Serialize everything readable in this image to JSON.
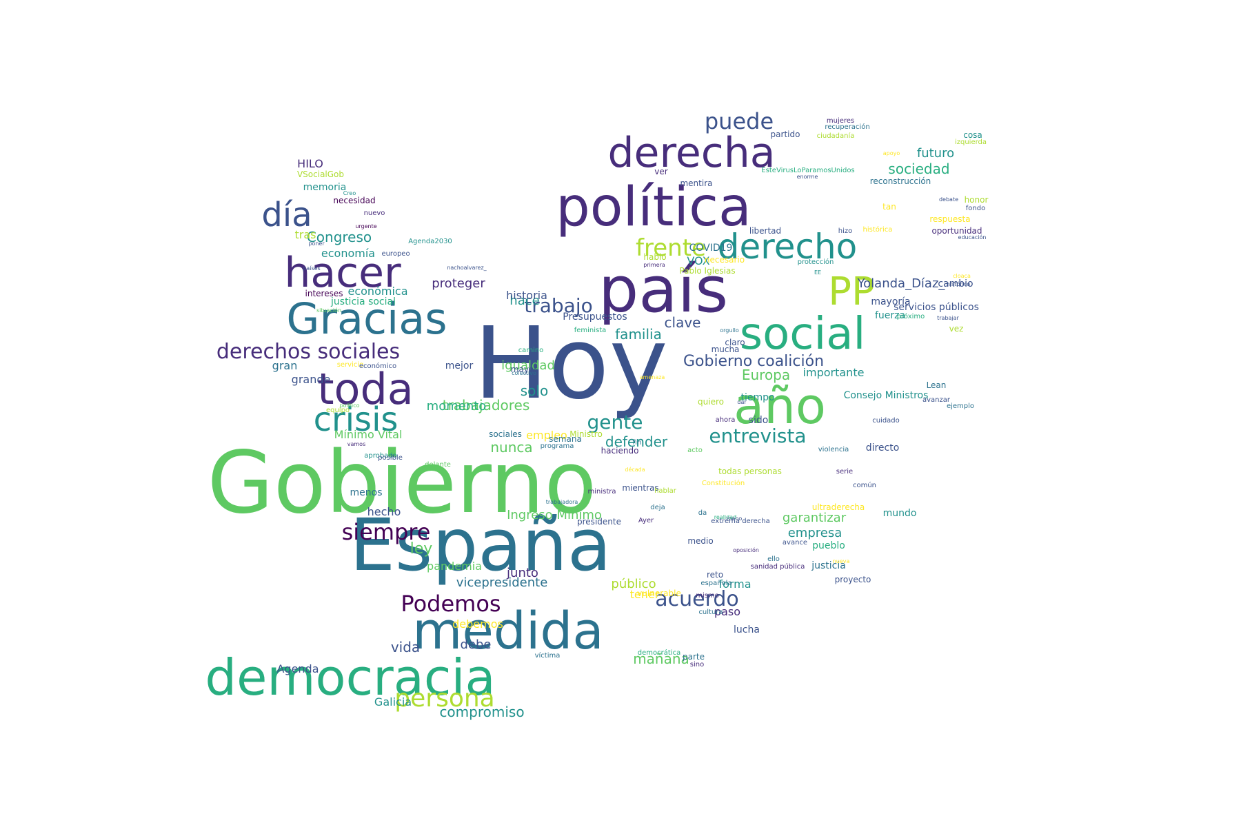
{
  "palette": {
    "deep_purple": "#440154",
    "purple": "#472d7b",
    "indigo": "#3b528b",
    "blue": "#2c728e",
    "teal": "#21918c",
    "green_teal": "#28ae80",
    "green": "#5ec962",
    "lime": "#addc30",
    "yellow": "#fde725"
  },
  "words": [
    {
      "text": "Hoy",
      "color": "#3b528b"
    },
    {
      "text": "Gobierno",
      "color": "#5ec962"
    },
    {
      "text": "España",
      "color": "#2c728e"
    },
    {
      "text": "país",
      "color": "#472d7b"
    },
    {
      "text": "política",
      "color": "#472d7b"
    },
    {
      "text": "medida",
      "color": "#2c728e"
    },
    {
      "text": "democracia",
      "color": "#28ae80"
    },
    {
      "text": "año",
      "color": "#5ec962"
    },
    {
      "text": "derecha",
      "color": "#472d7b"
    },
    {
      "text": "social",
      "color": "#28ae80"
    },
    {
      "text": "toda",
      "color": "#472d7b"
    },
    {
      "text": "Gracias",
      "color": "#2c728e"
    },
    {
      "text": "hacer",
      "color": "#472d7b"
    },
    {
      "text": "derecho",
      "color": "#21918c"
    },
    {
      "text": "PP",
      "color": "#addc30"
    },
    {
      "text": "día",
      "color": "#3b528b"
    },
    {
      "text": "crisis",
      "color": "#21918c"
    },
    {
      "text": "derechos sociales",
      "color": "#472d7b"
    },
    {
      "text": "persona",
      "color": "#addc30"
    },
    {
      "text": "Podemos",
      "color": "#440154"
    },
    {
      "text": "siempre",
      "color": "#440154"
    },
    {
      "text": "frente",
      "color": "#addc30"
    },
    {
      "text": "trabajo",
      "color": "#3b528b"
    },
    {
      "text": "acuerdo",
      "color": "#3b528b"
    },
    {
      "text": "entrevista",
      "color": "#21918c"
    },
    {
      "text": "puede",
      "color": "#3b528b"
    },
    {
      "text": "gente",
      "color": "#21918c"
    },
    {
      "text": "Gobierno coalición",
      "color": "#3b528b"
    },
    {
      "text": "trabajadores",
      "color": "#5ec962"
    },
    {
      "text": "Ingreso Mínimo",
      "color": "#5ec962"
    },
    {
      "text": "Congreso",
      "color": "#21918c"
    },
    {
      "text": "proteger",
      "color": "#472d7b"
    },
    {
      "text": "vicepresidente",
      "color": "#2c728e"
    },
    {
      "text": "público",
      "color": "#addc30"
    },
    {
      "text": "momento",
      "color": "#28ae80"
    },
    {
      "text": "defender",
      "color": "#21918c"
    },
    {
      "text": "familia",
      "color": "#21918c"
    },
    {
      "text": "clave",
      "color": "#3b528b"
    },
    {
      "text": "compromiso",
      "color": "#21918c"
    },
    {
      "text": "mañana",
      "color": "#5ec962"
    },
    {
      "text": "vida",
      "color": "#3b528b"
    },
    {
      "text": "debe",
      "color": "#3b528b"
    },
    {
      "text": "igualdad",
      "color": "#5ec962"
    },
    {
      "text": "Europa",
      "color": "#5ec962"
    },
    {
      "text": "sociedad",
      "color": "#28ae80"
    },
    {
      "text": "futuro",
      "color": "#21918c"
    },
    {
      "text": "Yolanda_Díaz_",
      "color": "#3b528b"
    },
    {
      "text": "garantizar",
      "color": "#5ec962"
    },
    {
      "text": "empresa",
      "color": "#21918c"
    },
    {
      "text": "importante",
      "color": "#21918c"
    },
    {
      "text": "ley",
      "color": "#5ec962"
    },
    {
      "text": "solo",
      "color": "#21918c"
    },
    {
      "text": "hace",
      "color": "#21918c"
    },
    {
      "text": "historia",
      "color": "#3b528b"
    },
    {
      "text": "economía",
      "color": "#21918c"
    },
    {
      "text": "económica",
      "color": "#21918c"
    },
    {
      "text": "nunca",
      "color": "#5ec962"
    },
    {
      "text": "Galicia",
      "color": "#21918c"
    },
    {
      "text": "Agenda",
      "color": "#3b528b"
    },
    {
      "text": "debemos",
      "color": "#fde725"
    },
    {
      "text": "pandemia",
      "color": "#5ec962"
    },
    {
      "text": "junto",
      "color": "#472d7b"
    },
    {
      "text": "hecho",
      "color": "#3b528b"
    },
    {
      "text": "gran",
      "color": "#2c728e"
    },
    {
      "text": "grande",
      "color": "#3b528b"
    },
    {
      "text": "mejor",
      "color": "#3b528b"
    },
    {
      "text": "empleo",
      "color": "#fde725"
    },
    {
      "text": "tener",
      "color": "#fde725"
    },
    {
      "text": "forma",
      "color": "#21918c"
    },
    {
      "text": "paso",
      "color": "#472d7b"
    },
    {
      "text": "lucha",
      "color": "#3b528b"
    },
    {
      "text": "HILO",
      "color": "#472d7b"
    },
    {
      "text": "tras",
      "color": "#addc30"
    },
    {
      "text": "memoria",
      "color": "#21918c"
    },
    {
      "text": "VSocialGob",
      "color": "#addc30"
    },
    {
      "text": "VOX",
      "color": "#21918c"
    },
    {
      "text": "COVID19",
      "color": "#2c728e"
    },
    {
      "text": "Presupuestos",
      "color": "#3b528b"
    },
    {
      "text": "justicia social",
      "color": "#28ae80"
    },
    {
      "text": "Mínimo Vital",
      "color": "#5ec962"
    },
    {
      "text": "menos",
      "color": "#2c728e"
    },
    {
      "text": "mundo",
      "color": "#21918c"
    },
    {
      "text": "directo",
      "color": "#3b528b"
    },
    {
      "text": "sido",
      "color": "#3b528b"
    },
    {
      "text": "tiempo",
      "color": "#21918c"
    },
    {
      "text": "fuerza",
      "color": "#21918c"
    },
    {
      "text": "mayoría",
      "color": "#3b528b"
    },
    {
      "text": "cambio",
      "color": "#3b528b"
    },
    {
      "text": "servicios públicos",
      "color": "#3b528b"
    },
    {
      "text": "pueblo",
      "color": "#28ae80"
    },
    {
      "text": "justicia",
      "color": "#2c728e"
    },
    {
      "text": "proyecto",
      "color": "#3b528b"
    },
    {
      "text": "mujeres",
      "color": "#472d7b"
    },
    {
      "text": "recuperación",
      "color": "#2c728e"
    },
    {
      "text": "partido",
      "color": "#3b528b"
    },
    {
      "text": "ciudadanía",
      "color": "#addc30"
    },
    {
      "text": "cosa",
      "color": "#21918c"
    },
    {
      "text": "izquierda",
      "color": "#addc30"
    },
    {
      "text": "apoyo",
      "color": "#fde725"
    },
    {
      "text": "EsteVirusLoParamosUnidos",
      "color": "#28ae80"
    },
    {
      "text": "enorme",
      "color": "#3b528b"
    },
    {
      "text": "reconstrucción",
      "color": "#2c728e"
    },
    {
      "text": "ver",
      "color": "#472d7b"
    },
    {
      "text": "mentira",
      "color": "#3b528b"
    },
    {
      "text": "debate",
      "color": "#3b528b"
    },
    {
      "text": "honor",
      "color": "#addc30"
    },
    {
      "text": "tan",
      "color": "#fde725"
    },
    {
      "text": "fondo",
      "color": "#3b528b"
    },
    {
      "text": "respuesta",
      "color": "#fde725"
    },
    {
      "text": "libertad",
      "color": "#3b528b"
    },
    {
      "text": "histórica",
      "color": "#fde725"
    },
    {
      "text": "hizo",
      "color": "#3b528b"
    },
    {
      "text": "oportunidad",
      "color": "#472d7b"
    },
    {
      "text": "educación",
      "color": "#3b528b"
    },
    {
      "text": "hablo",
      "color": "#addc30"
    },
    {
      "text": "primera",
      "color": "#472d7b"
    },
    {
      "text": "necesario",
      "color": "#fde725"
    },
    {
      "text": "protección",
      "color": "#21918c"
    },
    {
      "text": "Pablo Iglesias",
      "color": "#addc30"
    },
    {
      "text": "EE",
      "color": "#21918c"
    },
    {
      "text": "cloaca",
      "color": "#fde725"
    },
    {
      "text": "histórico",
      "color": "#3b528b"
    },
    {
      "text": "próximo",
      "color": "#28ae80"
    },
    {
      "text": "trabajar",
      "color": "#3b528b"
    },
    {
      "text": "vez",
      "color": "#addc30"
    },
    {
      "text": "claro",
      "color": "#3b528b"
    },
    {
      "text": "mucha",
      "color": "#3b528b"
    },
    {
      "text": "orgullo",
      "color": "#2c728e"
    },
    {
      "text": "feminista",
      "color": "#28ae80"
    },
    {
      "text": "Lean",
      "color": "#2c728e"
    },
    {
      "text": "Consejo Ministros",
      "color": "#21918c"
    },
    {
      "text": "avanzar",
      "color": "#3b528b"
    },
    {
      "text": "ejemplo",
      "color": "#2c728e"
    },
    {
      "text": "amenaza",
      "color": "#fde725"
    },
    {
      "text": "camino",
      "color": "#28ae80"
    },
    {
      "text": "colectivo",
      "color": "#2c728e"
    },
    {
      "text": "mayor",
      "color": "#3b528b"
    },
    {
      "text": "quiero",
      "color": "#addc30"
    },
    {
      "text": "dar",
      "color": "#3b528b"
    },
    {
      "text": "ahora",
      "color": "#472d7b"
    },
    {
      "text": "necesidad",
      "color": "#440154"
    },
    {
      "text": "Creo",
      "color": "#21918c"
    },
    {
      "text": "nuevo",
      "color": "#472d7b"
    },
    {
      "text": "urgente",
      "color": "#440154"
    },
    {
      "text": "Agenda2030",
      "color": "#21918c"
    },
    {
      "text": "poner",
      "color": "#3b528b"
    },
    {
      "text": "europeo",
      "color": "#3b528b"
    },
    {
      "text": "nachoalvarez_",
      "color": "#3b528b"
    },
    {
      "text": "países",
      "color": "#3b528b"
    },
    {
      "text": "intereses",
      "color": "#440154"
    },
    {
      "text": "situación",
      "color": "#5ec962"
    },
    {
      "text": "servicio",
      "color": "#fde725"
    },
    {
      "text": "económico",
      "color": "#3b528b"
    },
    {
      "text": "político",
      "color": "#5ec962"
    },
    {
      "text": "equipo",
      "color": "#addc30"
    },
    {
      "text": "sociales",
      "color": "#2c728e"
    },
    {
      "text": "Ministro",
      "color": "#addc30"
    },
    {
      "text": "semana",
      "color": "#2c728e"
    },
    {
      "text": "fin",
      "color": "#2c728e"
    },
    {
      "text": "programa",
      "color": "#2c728e"
    },
    {
      "text": "haciendo",
      "color": "#472d7b"
    },
    {
      "text": "acto",
      "color": "#5ec962"
    },
    {
      "text": "violencia",
      "color": "#2c728e"
    },
    {
      "text": "cuidado",
      "color": "#3b528b"
    },
    {
      "text": "vamos",
      "color": "#472d7b"
    },
    {
      "text": "aprobado",
      "color": "#21918c"
    },
    {
      "text": "posible",
      "color": "#3b528b"
    },
    {
      "text": "delante",
      "color": "#5ec962"
    },
    {
      "text": "década",
      "color": "#fde725"
    },
    {
      "text": "todas personas",
      "color": "#addc30"
    },
    {
      "text": "Constitución",
      "color": "#fde725"
    },
    {
      "text": "mientras",
      "color": "#3b528b"
    },
    {
      "text": "ministra",
      "color": "#472d7b"
    },
    {
      "text": "serie",
      "color": "#472d7b"
    },
    {
      "text": "hablar",
      "color": "#addc30"
    },
    {
      "text": "trabajadora",
      "color": "#2c728e"
    },
    {
      "text": "deja",
      "color": "#2c728e"
    },
    {
      "text": "da",
      "color": "#2c728e"
    },
    {
      "text": "Ayer",
      "color": "#472d7b"
    },
    {
      "text": "realidad",
      "color": "#28ae80"
    },
    {
      "text": "avance",
      "color": "#3b528b"
    },
    {
      "text": "extrema derecha",
      "color": "#3b528b"
    },
    {
      "text": "mano",
      "color": "#3b528b"
    },
    {
      "text": "presidente",
      "color": "#3b528b"
    },
    {
      "text": "oposición",
      "color": "#472d7b"
    },
    {
      "text": "ello",
      "color": "#2c728e"
    },
    {
      "text": "reto",
      "color": "#3b528b"
    },
    {
      "text": "nueva",
      "color": "#fde725"
    },
    {
      "text": "española",
      "color": "#2c728e"
    },
    {
      "text": "sanidad pública",
      "color": "#472d7b"
    },
    {
      "text": "cultura",
      "color": "#2c728e"
    },
    {
      "text": "medio",
      "color": "#3b528b"
    },
    {
      "text": "ultraderecha",
      "color": "#fde725"
    },
    {
      "text": "común",
      "color": "#3b528b"
    },
    {
      "text": "democrática",
      "color": "#28ae80"
    },
    {
      "text": "parte",
      "color": "#2c728e"
    },
    {
      "text": "sino",
      "color": "#472d7b"
    },
    {
      "text": "víctima",
      "color": "#2c728e"
    },
    {
      "text": "mismo",
      "color": "#472d7b"
    },
    {
      "text": "vulnerable",
      "color": "#fde725"
    }
  ]
}
